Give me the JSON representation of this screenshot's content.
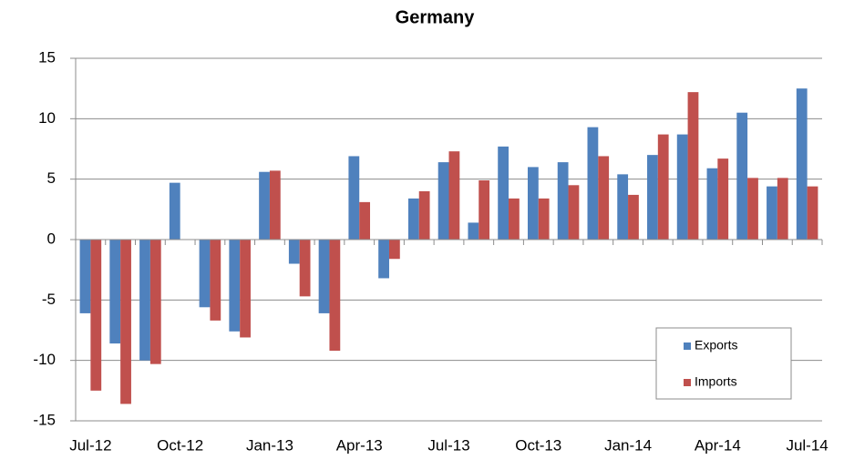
{
  "chart_data": {
    "type": "bar",
    "title": "Germany",
    "categories": [
      "Jul-12",
      null,
      null,
      "Oct-12",
      null,
      null,
      "Jan-13",
      null,
      null,
      "Apr-13",
      null,
      null,
      "Jul-13",
      null,
      null,
      "Oct-13",
      null,
      null,
      "Jan-14",
      null,
      null,
      "Apr-14",
      null,
      null,
      "Jul-14"
    ],
    "series": [
      {
        "name": "Exports",
        "color": "#4f81bd",
        "values": [
          -6.1,
          -8.6,
          -10.0,
          4.7,
          -5.6,
          -7.6,
          5.6,
          -2.0,
          -6.1,
          6.9,
          -3.2,
          3.4,
          6.4,
          1.4,
          7.7,
          6.0,
          6.4,
          9.3,
          5.4,
          7.0,
          8.7,
          5.9,
          10.5,
          4.4,
          12.5
        ]
      },
      {
        "name": "Imports",
        "color": "#c0504d",
        "values": [
          -12.5,
          -13.6,
          -10.3,
          0,
          -6.7,
          -8.1,
          5.7,
          -4.7,
          -9.2,
          3.1,
          -1.6,
          4.0,
          7.3,
          4.9,
          3.4,
          3.4,
          4.5,
          6.9,
          3.7,
          8.7,
          12.2,
          6.7,
          5.1,
          5.1,
          4.4
        ]
      }
    ],
    "ylim": [
      -15,
      15
    ],
    "yticks": [
      -15,
      -10,
      -5,
      0,
      5,
      10,
      15
    ],
    "grid": true,
    "legend": "lower right"
  }
}
